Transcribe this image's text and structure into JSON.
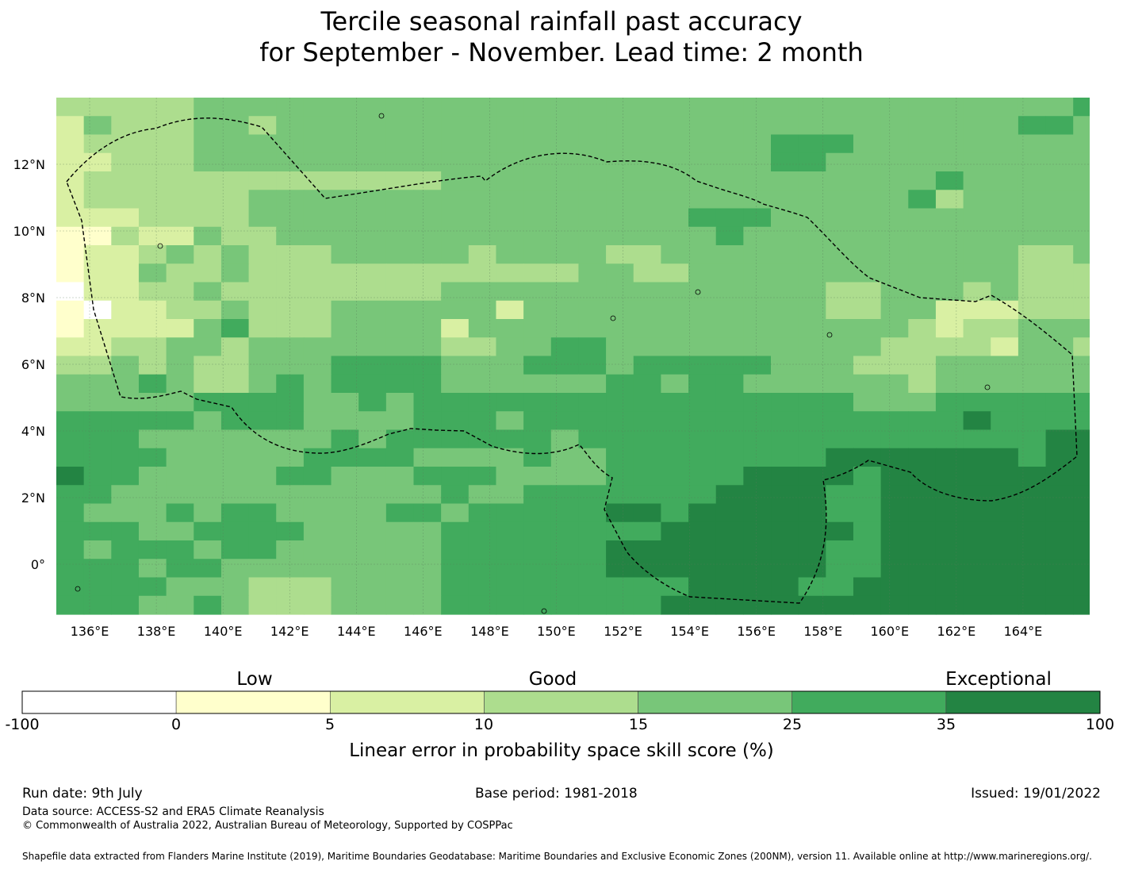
{
  "title_line1": "Tercile seasonal rainfall past accuracy",
  "title_line2": "for September - November. Lead time: 2 month",
  "map": {
    "lon_range": [
      135,
      166
    ],
    "lat_range": [
      -1.5,
      14
    ],
    "cell_size_deg": 0.833,
    "lon_ticks": [
      "136°E",
      "138°E",
      "140°E",
      "142°E",
      "144°E",
      "146°E",
      "148°E",
      "150°E",
      "152°E",
      "154°E",
      "156°E",
      "158°E",
      "160°E",
      "162°E",
      "164°E"
    ],
    "lat_ticks": [
      "12°N",
      "10°N",
      "8°N",
      "6°N",
      "4°N",
      "2°N",
      "0°"
    ],
    "grid_rows": [
      "33333444444444444444444444444444444445",
      "24333443444444444444444444444444444554",
      "23333444444444444444444444555444444444",
      "22333444444444444444444444554444444444",
      "23333333333333444444444444444444544444",
      "23333334444444444444444444444445344444",
      "22233334444444444444444555444444444444",
      "113224334444444444444444544444444444444",
      "12234343334444434444334444444444444334",
      "12243343333333333334433444444444444333",
      "02233433333333444444444444443344434333",
      "10223343334444442444444444443344222333",
      "12222453334444244444444444444443233444",
      "22334434444444334455444444444433332443",
      "33434334445555444555455555444333444444",
      "44454334545555444444554554444443444444",
      "44444555544545555555555555555444555555",
      "55555455544445554555555555555555565555",
      "55544444445455555545555555555555555566",
      "55554444455554444544555555556666666566",
      "65544444554445554444555556666566666666",
      "55444444444444544555555566665566666666",
      "54445455444455455555665666665566666666",
      "55544555544444555555556666666566666666",
      "54555455444444555555666666665566666666",
      "55545544444444555555666666665566666666",
      "55554443334444555555555666655666666666",
      "55544543334444555555556666666666666666"
    ]
  },
  "legend": {
    "categories": [
      "Low",
      "Good",
      "Exceptional"
    ],
    "tick_labels": [
      "-100",
      "0",
      "5",
      "10",
      "15",
      "25",
      "35",
      "100"
    ],
    "colors": [
      "#ffffff",
      "#ffffcc",
      "#d9f0a3",
      "#addd8e",
      "#78c679",
      "#41ab5d",
      "#238443"
    ],
    "label": "Linear error in probability space skill score (%)"
  },
  "footer": {
    "run_date": "Run date: 9th July",
    "base_period": "Base period: 1981-2018",
    "issued": "Issued: 19/01/2022",
    "data_source": "Data source: ACCESS-S2 and ERA5 Climate Reanalysis",
    "copyright": "© Commonwealth of Australia 2022, Australian Bureau of Meteorology, Supported by COSPPac",
    "shapefile_note": "Shapefile data extracted from Flanders Marine Institute (2019), Maritime Boundaries Geodatabase: Maritime Boundaries and Exclusive Economic Zones (200NM), version 11. Available online at http://www.marineregions.org/."
  }
}
